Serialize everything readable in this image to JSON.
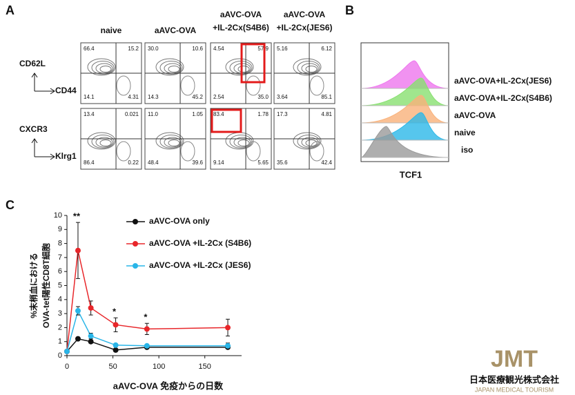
{
  "panel_a": {
    "label": "A",
    "columns": [
      [
        "naive"
      ],
      [
        "aAVC-OVA"
      ],
      [
        "aAVC-OVA",
        "+IL-2Cx(S4B6)"
      ],
      [
        "aAVC-OVA",
        "+IL-2Cx(JES6)"
      ]
    ],
    "rows": [
      {
        "y_axis": "CD62L",
        "x_axis": "CD44",
        "quadrants": [
          [
            "66.4",
            "15.2",
            "14.1",
            "4.31"
          ],
          [
            "30.0",
            "10.6",
            "14.3",
            "45.2"
          ],
          [
            "4.54",
            "57.9",
            "2.54",
            "35.0"
          ],
          [
            "5.16",
            "6.12",
            "3.64",
            "85.1"
          ]
        ]
      },
      {
        "y_axis": "CXCR3",
        "x_axis": "Klrg1",
        "quadrants": [
          [
            "13.4",
            "0.021",
            "86.4",
            "0.22"
          ],
          [
            "11.0",
            "1.05",
            "48.4",
            "39.6"
          ],
          [
            "83.4",
            "1.78",
            "9.14",
            "5.65"
          ],
          [
            "17.3",
            "4.81",
            "35.6",
            "42.4"
          ]
        ]
      }
    ]
  },
  "panel_b": {
    "label": "B",
    "x_axis": "TCF1",
    "tracks": [
      "aAVC-OVA+IL-2Cx(JES6)",
      "aAVC-OVA+IL-2Cx(S4B6)",
      "aAVC-OVA",
      "naive",
      "iso"
    ]
  },
  "panel_c_label": "C",
  "chart_data": {
    "type": "line",
    "x_label": "aAVC-OVA 免疫からの日数",
    "y_label": [
      "%末梢血における",
      "OVA-tet陽性CD8T細胞"
    ],
    "x": [
      0,
      12,
      26,
      53,
      87,
      175
    ],
    "series": [
      {
        "name": "aAVC-OVA only",
        "color": "#111111",
        "values": [
          0.3,
          1.2,
          1.0,
          0.4,
          0.6,
          0.6
        ],
        "errors": [
          0,
          0.1,
          0.1,
          0.1,
          0.1,
          0.1
        ]
      },
      {
        "name": "aAVC-OVA +IL-2Cx (S4B6)",
        "color": "#e8262a",
        "values": [
          0.3,
          7.5,
          3.4,
          2.2,
          1.9,
          2.0
        ],
        "errors": [
          0,
          2.0,
          0.5,
          0.5,
          0.4,
          0.6
        ]
      },
      {
        "name": "aAVC-OVA +IL-2Cx (JES6)",
        "color": "#29b5e8",
        "values": [
          0.3,
          3.2,
          1.4,
          0.75,
          0.7,
          0.7
        ],
        "errors": [
          0,
          0.3,
          0.2,
          0.1,
          0.1,
          0.2
        ]
      }
    ],
    "annotations": [
      {
        "text": "**",
        "x": 12
      },
      {
        "text": "*",
        "x": 53
      },
      {
        "text": "*",
        "x": 87
      }
    ],
    "xlim": [
      0,
      190
    ],
    "xticks": [
      0,
      50,
      100,
      150
    ],
    "ylim": [
      0,
      10
    ],
    "yticks": [
      0,
      1,
      2,
      3,
      4,
      5,
      6,
      7,
      8,
      9,
      10
    ]
  },
  "logo": {
    "mark": "JMT",
    "name": "日本医療観光株式会社",
    "sub": "JAPAN MEDICAL TOURISM"
  }
}
